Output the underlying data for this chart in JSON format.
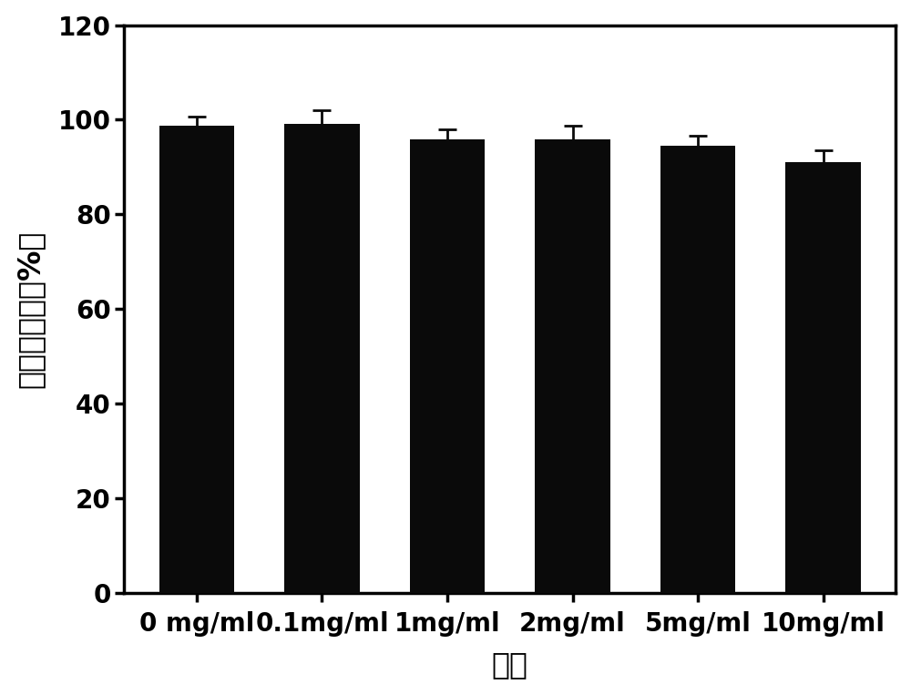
{
  "categories": [
    "0 mg/ml",
    "0.1mg/ml",
    "1mg/ml",
    "2mg/ml",
    "5mg/ml",
    "10mg/ml"
  ],
  "values": [
    98.8,
    99.2,
    95.8,
    95.9,
    94.5,
    91.0
  ],
  "errors": [
    1.8,
    2.8,
    2.2,
    2.8,
    2.2,
    2.5
  ],
  "bar_color": "#0a0a0a",
  "error_color": "#0a0a0a",
  "ylabel": "细胞存活率（%）",
  "xlabel": "浓度",
  "ylim": [
    0,
    120
  ],
  "yticks": [
    0,
    20,
    40,
    60,
    80,
    100,
    120
  ],
  "bar_width": 0.6,
  "background_color": "#ffffff",
  "ylabel_fontsize": 24,
  "xlabel_fontsize": 24,
  "tick_fontsize": 20,
  "figure_width": 10.0,
  "figure_height": 7.63,
  "dpi": 100
}
